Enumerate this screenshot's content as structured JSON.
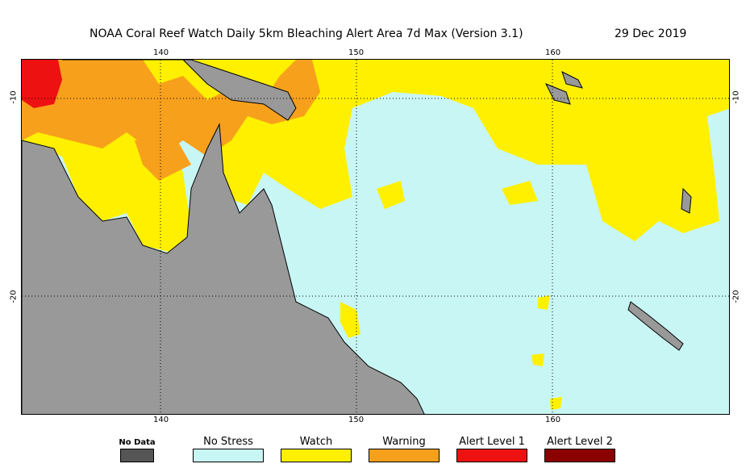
{
  "title": {
    "main": "NOAA Coral Reef Watch Daily 5km Bleaching Alert Area 7d Max (Version 3.1)",
    "date": "29 Dec 2019"
  },
  "axes": {
    "lon_top": [
      "140",
      "150",
      "160"
    ],
    "lon_bottom": [
      "140",
      "150",
      "160"
    ],
    "lat_left": [
      "-10",
      "-20"
    ],
    "lat_right": [
      "-10",
      "-20"
    ]
  },
  "legend": {
    "items": [
      {
        "label": "No Data",
        "color": "#555555"
      },
      {
        "label": "No Stress",
        "color": "#c8f6f4"
      },
      {
        "label": "Watch",
        "color": "#fff000"
      },
      {
        "label": "Warning",
        "color": "#f7a01c"
      },
      {
        "label": "Alert Level 1",
        "color": "#ee1111"
      },
      {
        "label": "Alert Level 2",
        "color": "#8b0000"
      }
    ]
  },
  "colors": {
    "land": "#999999",
    "ocean_no_stress": "#c8f6f4",
    "watch": "#fff000",
    "warning": "#f7a01c",
    "alert1": "#ee1111"
  }
}
